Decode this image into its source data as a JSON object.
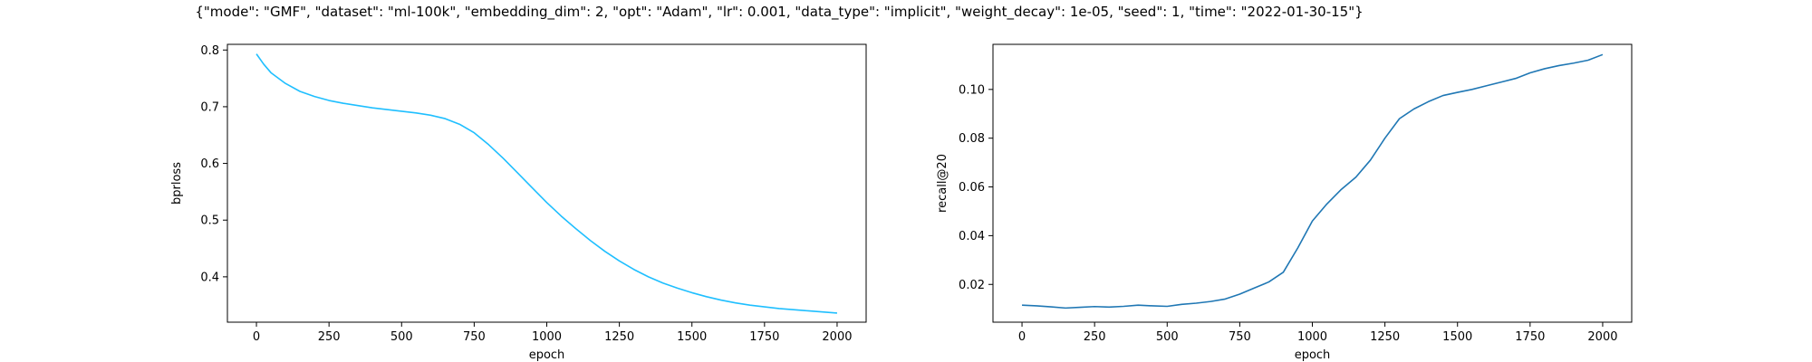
{
  "figure_title": "{\"mode\": \"GMF\", \"dataset\": \"ml-100k\", \"embedding_dim\": 2, \"opt\": \"Adam\", \"lr\": 0.001, \"data_type\": \"implicit\", \"weight_decay\": 1e-05, \"seed\": 1, \"time\": \"2022-01-30-15\"}",
  "chart_data": [
    {
      "type": "line",
      "xlabel": "epoch",
      "ylabel": "bprloss",
      "xlim": [
        -100,
        2100
      ],
      "ylim": [
        0.32,
        0.81
      ],
      "xticks": [
        0,
        250,
        500,
        750,
        1000,
        1250,
        1500,
        1750,
        2000
      ],
      "yticks": [
        0.4,
        0.5,
        0.6,
        0.7,
        0.8
      ],
      "ytick_labels": [
        "0.4",
        "0.5",
        "0.6",
        "0.7",
        "0.8"
      ],
      "grid": false,
      "color": "#1fbfff",
      "series": [
        {
          "x": [
            0,
            25,
            50,
            100,
            150,
            200,
            250,
            300,
            350,
            400,
            450,
            500,
            550,
            600,
            650,
            700,
            750,
            800,
            850,
            900,
            950,
            1000,
            1050,
            1100,
            1150,
            1200,
            1250,
            1300,
            1350,
            1400,
            1450,
            1500,
            1550,
            1600,
            1650,
            1700,
            1750,
            1800,
            1850,
            1900,
            1950,
            2000
          ],
          "y": [
            0.793,
            0.775,
            0.76,
            0.741,
            0.727,
            0.718,
            0.711,
            0.706,
            0.702,
            0.698,
            0.695,
            0.692,
            0.689,
            0.685,
            0.679,
            0.669,
            0.654,
            0.633,
            0.609,
            0.583,
            0.557,
            0.531,
            0.507,
            0.485,
            0.464,
            0.445,
            0.428,
            0.413,
            0.4,
            0.389,
            0.38,
            0.372,
            0.365,
            0.359,
            0.354,
            0.35,
            0.347,
            0.344,
            0.342,
            0.34,
            0.338,
            0.336
          ]
        }
      ]
    },
    {
      "type": "line",
      "xlabel": "epoch",
      "ylabel": "recall@20",
      "xlim": [
        -100,
        2100
      ],
      "ylim": [
        0.0045,
        0.1185
      ],
      "xticks": [
        0,
        250,
        500,
        750,
        1000,
        1250,
        1500,
        1750,
        2000
      ],
      "yticks": [
        0.02,
        0.04,
        0.06,
        0.08,
        0.1
      ],
      "ytick_labels": [
        "0.02",
        "0.04",
        "0.06",
        "0.08",
        "0.10"
      ],
      "grid": false,
      "color": "#1f77b4",
      "series": [
        {
          "x": [
            0,
            50,
            100,
            150,
            200,
            250,
            300,
            350,
            400,
            450,
            500,
            550,
            600,
            650,
            700,
            750,
            800,
            850,
            900,
            950,
            1000,
            1050,
            1100,
            1150,
            1200,
            1250,
            1300,
            1350,
            1400,
            1450,
            1500,
            1550,
            1600,
            1650,
            1700,
            1750,
            1800,
            1850,
            1900,
            1950,
            2000
          ],
          "y": [
            0.0115,
            0.0112,
            0.0108,
            0.0103,
            0.0106,
            0.0109,
            0.0107,
            0.011,
            0.0115,
            0.0112,
            0.011,
            0.0118,
            0.0123,
            0.013,
            0.014,
            0.016,
            0.0185,
            0.021,
            0.025,
            0.035,
            0.046,
            0.053,
            0.059,
            0.064,
            0.071,
            0.08,
            0.088,
            0.092,
            0.095,
            0.0975,
            0.0988,
            0.1,
            0.1015,
            0.103,
            0.1045,
            0.1068,
            0.1085,
            0.1098,
            0.1108,
            0.112,
            0.1143
          ]
        }
      ]
    }
  ]
}
